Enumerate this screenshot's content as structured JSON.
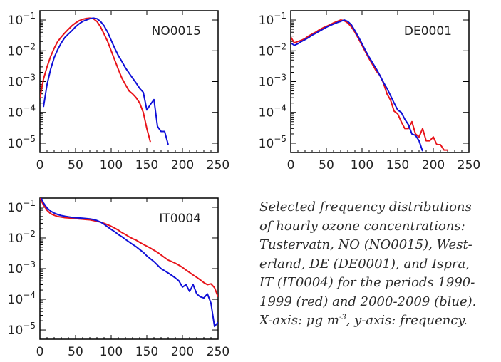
{
  "caption": {
    "lines": [
      "Selected frequency distributions",
      "of hourly ozone concentrations:",
      "Tustervatn, NO (NO0015), West-",
      "erland, DE (DE0001), and Ispra,",
      "IT (IT0004) for the periods 1990-",
      "1999 (red) and 2000-2009 (blue)."
    ],
    "last_line_pre": "X-axis: μg m",
    "last_line_sup": "-3",
    "last_line_post": ", y-axis: frequency."
  },
  "colors": {
    "red": "#e8141a",
    "blue": "#1010d8"
  },
  "chart_data": [
    {
      "type": "line",
      "title": "NO0015",
      "xlim": [
        0,
        250
      ],
      "ylim": [
        5e-06,
        0.2
      ],
      "yscale": "log",
      "xticks": [
        0,
        50,
        100,
        150,
        200,
        250
      ],
      "yticks": [
        {
          "value": 1e-05,
          "mant": "10",
          "exp": "−5"
        },
        {
          "value": 0.0001,
          "mant": "10",
          "exp": "−4"
        },
        {
          "value": 0.001,
          "mant": "10",
          "exp": "−3"
        },
        {
          "value": 0.01,
          "mant": "10",
          "exp": "−2"
        },
        {
          "value": 0.1,
          "mant": "10",
          "exp": "−1"
        }
      ],
      "series": [
        {
          "color": "red",
          "x": [
            0,
            5,
            10,
            15,
            20,
            25,
            30,
            35,
            40,
            45,
            50,
            55,
            60,
            65,
            70,
            75,
            80,
            85,
            90,
            95,
            100,
            105,
            110,
            115,
            120,
            125,
            130,
            135,
            140,
            145,
            150,
            155
          ],
          "y": [
            0.0003,
            0.0012,
            0.003,
            0.0065,
            0.012,
            0.02,
            0.028,
            0.038,
            0.05,
            0.065,
            0.08,
            0.095,
            0.105,
            0.112,
            0.115,
            0.11,
            0.09,
            0.06,
            0.035,
            0.02,
            0.01,
            0.005,
            0.0025,
            0.0013,
            0.0008,
            0.0005,
            0.0004,
            0.0003,
            0.0002,
            0.0001,
            3e-05,
            1.1e-05
          ]
        },
        {
          "color": "blue",
          "x": [
            5,
            10,
            15,
            20,
            25,
            30,
            35,
            40,
            45,
            50,
            55,
            60,
            65,
            70,
            75,
            80,
            85,
            90,
            95,
            100,
            105,
            110,
            115,
            120,
            125,
            130,
            135,
            140,
            145,
            150,
            155,
            160,
            165,
            170,
            175,
            180
          ],
          "y": [
            0.00015,
            0.0008,
            0.0025,
            0.006,
            0.011,
            0.018,
            0.027,
            0.035,
            0.045,
            0.06,
            0.075,
            0.09,
            0.1,
            0.11,
            0.115,
            0.11,
            0.09,
            0.065,
            0.04,
            0.022,
            0.012,
            0.007,
            0.0045,
            0.0028,
            0.0019,
            0.0013,
            0.0009,
            0.0006,
            0.00045,
            0.00012,
            0.00018,
            0.00026,
            3.5e-05,
            2.4e-05,
            2.4e-05,
            9e-06
          ]
        }
      ]
    },
    {
      "type": "line",
      "title": "DE0001",
      "xlim": [
        0,
        250
      ],
      "ylim": [
        5e-06,
        0.2
      ],
      "yscale": "log",
      "xticks": [
        0,
        50,
        100,
        150,
        200,
        250
      ],
      "yticks": [
        {
          "value": 1e-05,
          "mant": "10",
          "exp": "−5"
        },
        {
          "value": 0.0001,
          "mant": "10",
          "exp": "−4"
        },
        {
          "value": 0.001,
          "mant": "10",
          "exp": "−3"
        },
        {
          "value": 0.01,
          "mant": "10",
          "exp": "−2"
        },
        {
          "value": 0.1,
          "mant": "10",
          "exp": "−1"
        }
      ],
      "series": [
        {
          "color": "red",
          "x": [
            0,
            5,
            10,
            15,
            20,
            25,
            30,
            35,
            40,
            45,
            50,
            55,
            60,
            65,
            70,
            75,
            80,
            85,
            90,
            95,
            100,
            105,
            110,
            115,
            120,
            125,
            130,
            135,
            140,
            145,
            150,
            155,
            160,
            165,
            170,
            175,
            180,
            185,
            190,
            195,
            200,
            205,
            210,
            215,
            220
          ],
          "y": [
            0.028,
            0.018,
            0.02,
            0.022,
            0.025,
            0.03,
            0.035,
            0.04,
            0.048,
            0.055,
            0.062,
            0.07,
            0.08,
            0.09,
            0.1,
            0.095,
            0.08,
            0.06,
            0.04,
            0.025,
            0.015,
            0.009,
            0.0055,
            0.0035,
            0.0022,
            0.0016,
            0.0009,
            0.0004,
            0.00025,
            0.00011,
            9e-05,
            5e-05,
            3e-05,
            3e-05,
            5e-05,
            2e-05,
            1.6e-05,
            3e-05,
            1.2e-05,
            1.2e-05,
            1.6e-05,
            9e-06,
            9e-06,
            6e-06,
            6e-06
          ]
        },
        {
          "color": "blue",
          "x": [
            0,
            5,
            10,
            15,
            20,
            25,
            30,
            35,
            40,
            45,
            50,
            55,
            60,
            65,
            70,
            75,
            80,
            85,
            90,
            95,
            100,
            105,
            110,
            115,
            120,
            125,
            130,
            135,
            140,
            145,
            150,
            155,
            160,
            165,
            170,
            175,
            180,
            185
          ],
          "y": [
            0.018,
            0.015,
            0.017,
            0.02,
            0.023,
            0.027,
            0.032,
            0.037,
            0.043,
            0.05,
            0.058,
            0.066,
            0.074,
            0.082,
            0.09,
            0.1,
            0.09,
            0.07,
            0.045,
            0.028,
            0.017,
            0.01,
            0.0062,
            0.004,
            0.0026,
            0.0016,
            0.00095,
            0.0006,
            0.00035,
            0.0002,
            0.00012,
            0.0001,
            6e-05,
            4e-05,
            2e-05,
            1.8e-05,
            1.2e-05,
            5.5e-06
          ]
        }
      ]
    },
    {
      "type": "line",
      "title": "IT0004",
      "xlim": [
        0,
        250
      ],
      "ylim": [
        5e-06,
        0.2
      ],
      "yscale": "log",
      "xticks": [
        0,
        50,
        100,
        150,
        200,
        250
      ],
      "yticks": [
        {
          "value": 1e-05,
          "mant": "10",
          "exp": "−5"
        },
        {
          "value": 0.0001,
          "mant": "10",
          "exp": "−4"
        },
        {
          "value": 0.001,
          "mant": "10",
          "exp": "−3"
        },
        {
          "value": 0.01,
          "mant": "10",
          "exp": "−2"
        },
        {
          "value": 0.1,
          "mant": "10",
          "exp": "−1"
        }
      ],
      "series": [
        {
          "color": "red",
          "x": [
            0,
            5,
            10,
            15,
            20,
            25,
            30,
            35,
            40,
            45,
            50,
            55,
            60,
            65,
            70,
            75,
            80,
            85,
            90,
            95,
            100,
            105,
            110,
            115,
            120,
            125,
            130,
            135,
            140,
            145,
            150,
            155,
            160,
            165,
            170,
            175,
            180,
            185,
            190,
            195,
            200,
            205,
            210,
            215,
            220,
            225,
            230,
            235,
            240,
            245,
            250
          ],
          "y": [
            0.2,
            0.12,
            0.08,
            0.062,
            0.055,
            0.05,
            0.048,
            0.046,
            0.045,
            0.044,
            0.043,
            0.042,
            0.041,
            0.04,
            0.039,
            0.037,
            0.035,
            0.033,
            0.03,
            0.027,
            0.024,
            0.021,
            0.018,
            0.015,
            0.013,
            0.011,
            0.0095,
            0.0085,
            0.0072,
            0.0062,
            0.0054,
            0.0047,
            0.004,
            0.0034,
            0.0028,
            0.0023,
            0.0019,
            0.0017,
            0.0015,
            0.0013,
            0.0011,
            0.0009,
            0.00075,
            0.00062,
            0.00052,
            0.00043,
            0.00035,
            0.0003,
            0.00032,
            0.00024,
            0.00012
          ]
        },
        {
          "color": "blue",
          "x": [
            0,
            5,
            10,
            15,
            20,
            25,
            30,
            35,
            40,
            45,
            50,
            55,
            60,
            65,
            70,
            75,
            80,
            85,
            90,
            95,
            100,
            105,
            110,
            115,
            120,
            125,
            130,
            135,
            140,
            145,
            150,
            155,
            160,
            165,
            170,
            175,
            180,
            185,
            190,
            195,
            200,
            205,
            210,
            215,
            220,
            225,
            230,
            235,
            240,
            245,
            250
          ],
          "y": [
            0.25,
            0.14,
            0.095,
            0.075,
            0.065,
            0.058,
            0.054,
            0.051,
            0.049,
            0.047,
            0.046,
            0.045,
            0.044,
            0.043,
            0.042,
            0.04,
            0.037,
            0.033,
            0.028,
            0.023,
            0.019,
            0.016,
            0.013,
            0.011,
            0.009,
            0.0075,
            0.0062,
            0.0052,
            0.0042,
            0.0034,
            0.0026,
            0.0021,
            0.0017,
            0.0013,
            0.001,
            0.00085,
            0.00072,
            0.0006,
            0.0005,
            0.0004,
            0.00025,
            0.0003,
            0.00018,
            0.0003,
            0.00015,
            0.00012,
            0.00011,
            0.00015,
            7.5e-05,
            1.3e-05,
            1.8e-05
          ]
        }
      ]
    }
  ]
}
